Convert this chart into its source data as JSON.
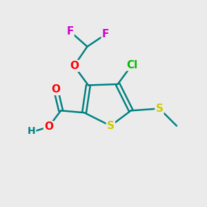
{
  "bg_color": "#ebebeb",
  "atom_colors": {
    "S": "#cccc00",
    "O": "#ff0000",
    "F": "#cc00cc",
    "Cl": "#00bb00",
    "C": "#008080",
    "H": "#008080"
  },
  "bond_color": "#008080",
  "bond_width": 1.8,
  "font_size_atoms": 11,
  "font_size_small": 10,
  "title": ""
}
